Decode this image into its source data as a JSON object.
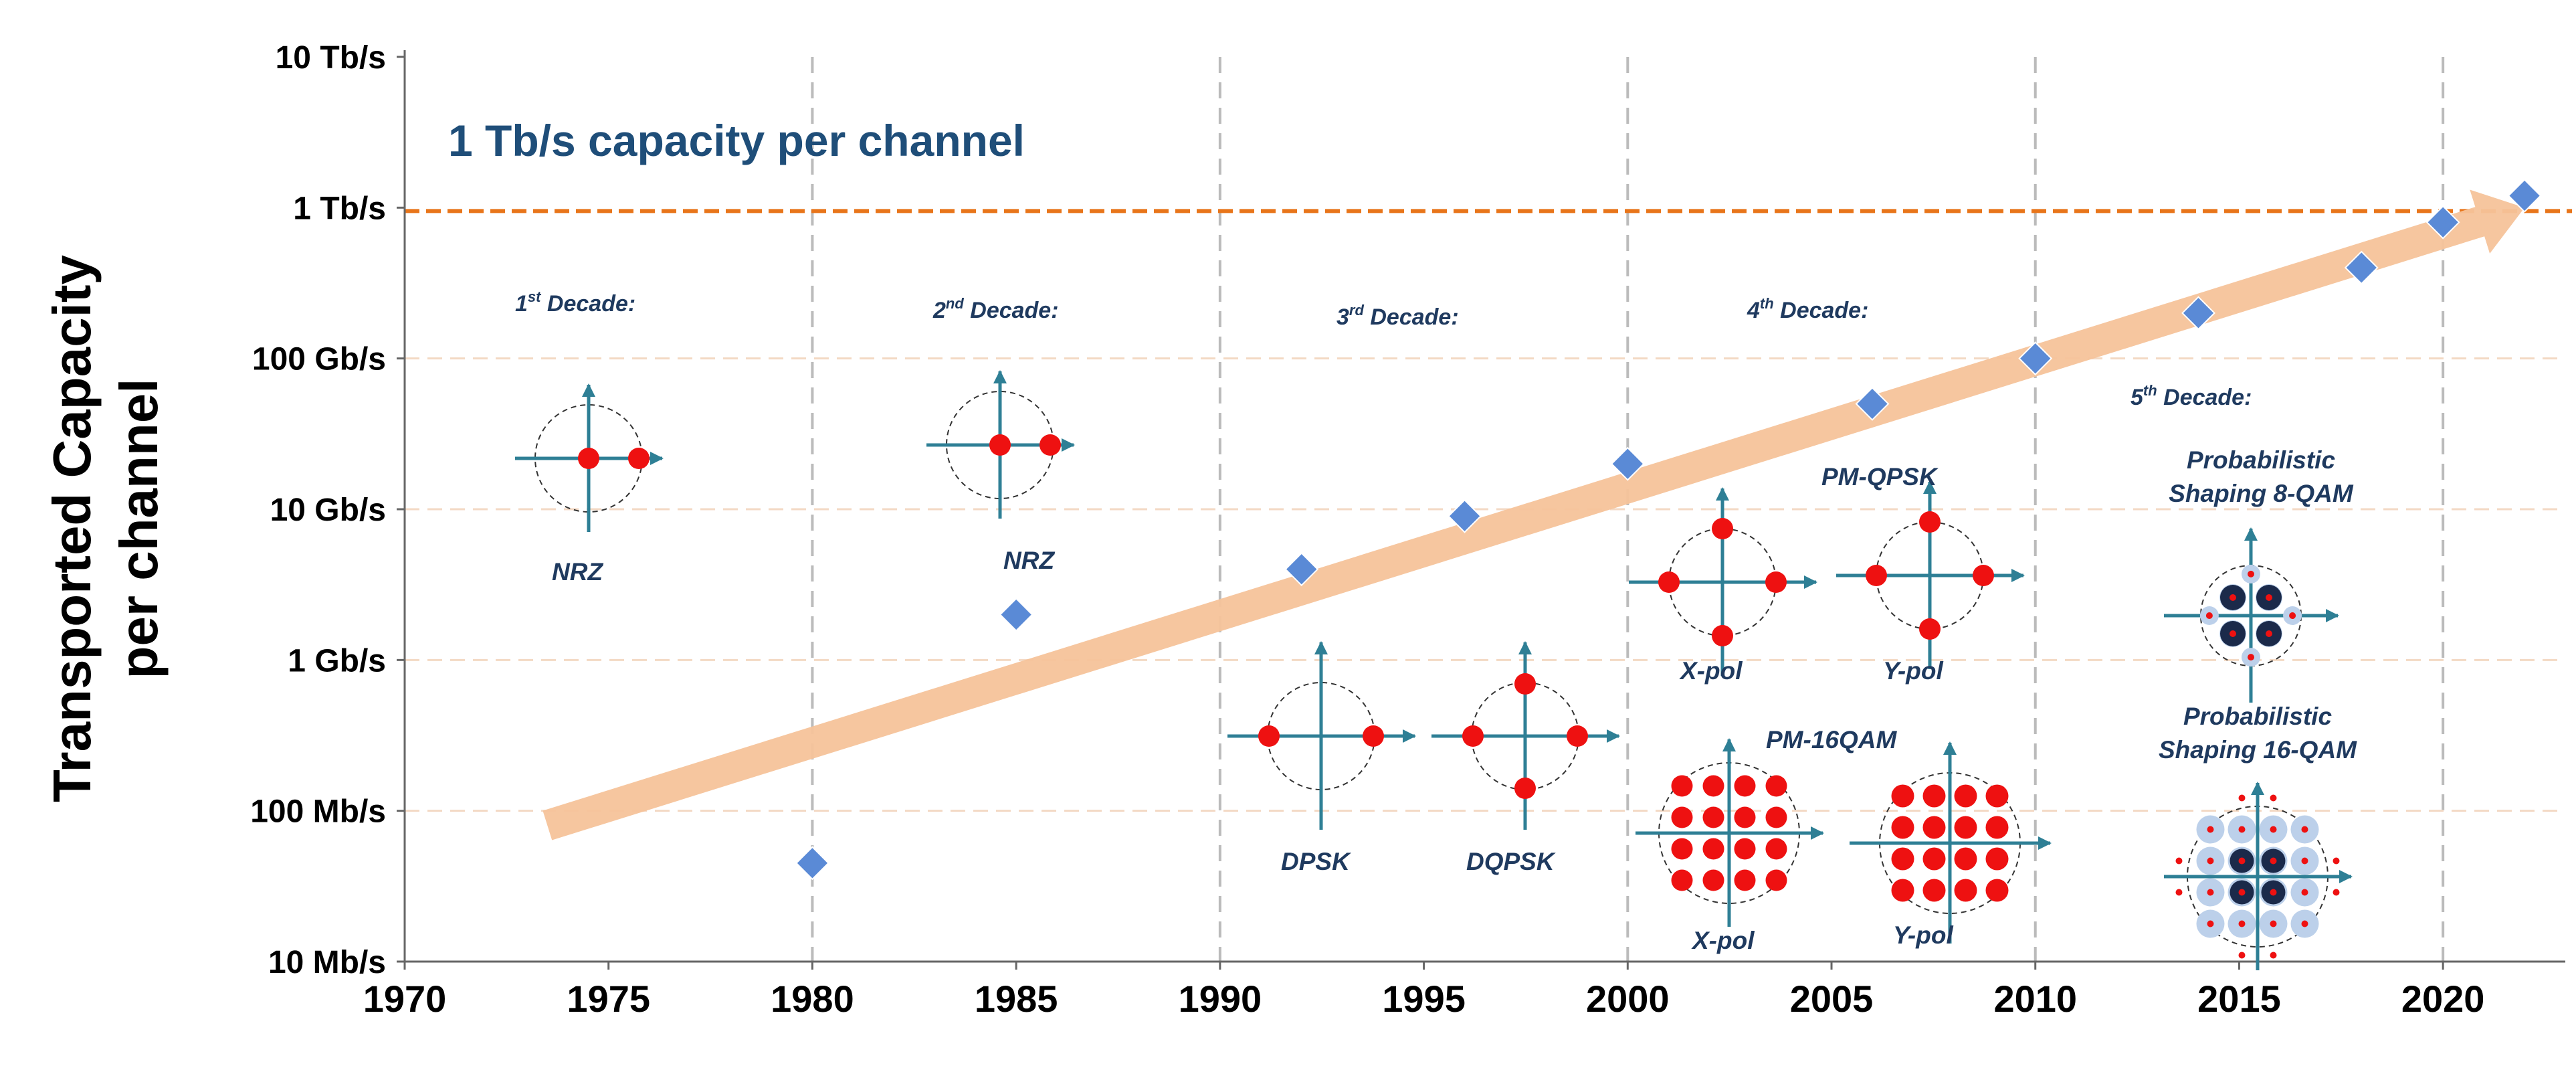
{
  "chart_data": {
    "type": "scatter",
    "title": "1 Tb/s capacity per channel",
    "xlabel": "",
    "ylabel": "Transported Capacity per channel",
    "ylabel_lines": [
      "Transported Capacity",
      "per channel"
    ],
    "xlim": [
      1970,
      2023
    ],
    "ylim_log10_bps": [
      7,
      13
    ],
    "x_ticks": [
      1970,
      1975,
      1980,
      1985,
      1990,
      1995,
      2000,
      2005,
      2010,
      2015,
      2020
    ],
    "y_ticks": [
      {
        "value": 10000000,
        "label": "10 Mb/s"
      },
      {
        "value": 100000000,
        "label": "100 Mb/s"
      },
      {
        "value": 1000000000,
        "label": "1 Gb/s"
      },
      {
        "value": 10000000000,
        "label": "10 Gb/s"
      },
      {
        "value": 100000000000,
        "label": "100 Gb/s"
      },
      {
        "value": 1000000000000,
        "label": "1 Tb/s"
      },
      {
        "value": 10000000000000,
        "label": "10 Tb/s"
      }
    ],
    "vertical_grid_years": [
      1980,
      1990,
      2000,
      2010,
      2020
    ],
    "horizontal_grid_values": [
      100000000,
      1000000000,
      10000000000,
      100000000000
    ],
    "reference_line": {
      "value": 950000000000,
      "label": "1 Tb/s capacity per channel",
      "color": "#e8751a"
    },
    "trend_arrow": {
      "x": [
        1973.5,
        2022
      ],
      "y": [
        80000000,
        1000000000000
      ],
      "color": "#f6c39a"
    },
    "series": [
      {
        "name": "Transported capacity",
        "color": "#5a8ad6",
        "points": [
          {
            "x": 1980,
            "y": 45000000
          },
          {
            "x": 1985,
            "y": 2000000000
          },
          {
            "x": 1992,
            "y": 4000000000
          },
          {
            "x": 1996,
            "y": 9000000000
          },
          {
            "x": 2000,
            "y": 20000000000
          },
          {
            "x": 2006,
            "y": 50000000000
          },
          {
            "x": 2010,
            "y": 100000000000
          },
          {
            "x": 2014,
            "y": 200000000000
          },
          {
            "x": 2018,
            "y": 400000000000
          },
          {
            "x": 2020,
            "y": 800000000000
          },
          {
            "x": 2022,
            "y": 1200000000000
          }
        ]
      }
    ],
    "decade_labels": [
      {
        "ordinal": "1",
        "sup": "st",
        "text": " Decade:"
      },
      {
        "ordinal": "2",
        "sup": "nd",
        "text": " Decade:"
      },
      {
        "ordinal": "3",
        "sup": "rd",
        "text": " Decade:"
      },
      {
        "ordinal": "4",
        "sup": "th",
        "text": " Decade:"
      },
      {
        "ordinal": "5",
        "sup": "th",
        "text": " Decade:"
      }
    ],
    "modulation_labels": {
      "nrz1": "NRZ",
      "nrz2": "NRZ",
      "dpsk": "DPSK",
      "dqpsk": "DQPSK",
      "pmqpsk": "PM-QPSK",
      "qpsk_xpol": "X-pol",
      "qpsk_ypol": "Y-pol",
      "pm16qam": "PM-16QAM",
      "qam_xpol": "X-pol",
      "qam_ypol": "Y-pol",
      "ps8_line1": "Probabilistic",
      "ps8_line2": "Shaping 8-QAM",
      "ps16_line1": "Probabilistic",
      "ps16_line2": "Shaping 16-QAM"
    },
    "colors": {
      "axis_arrow": "#2e7f95",
      "constellation_point": "#ee1111",
      "shaping_inner": "#1b2a4a",
      "shaping_halo": "#bcd0ea",
      "grid_vertical": "#bbbbbb",
      "grid_horizontal": "#f3d9c4"
    }
  }
}
